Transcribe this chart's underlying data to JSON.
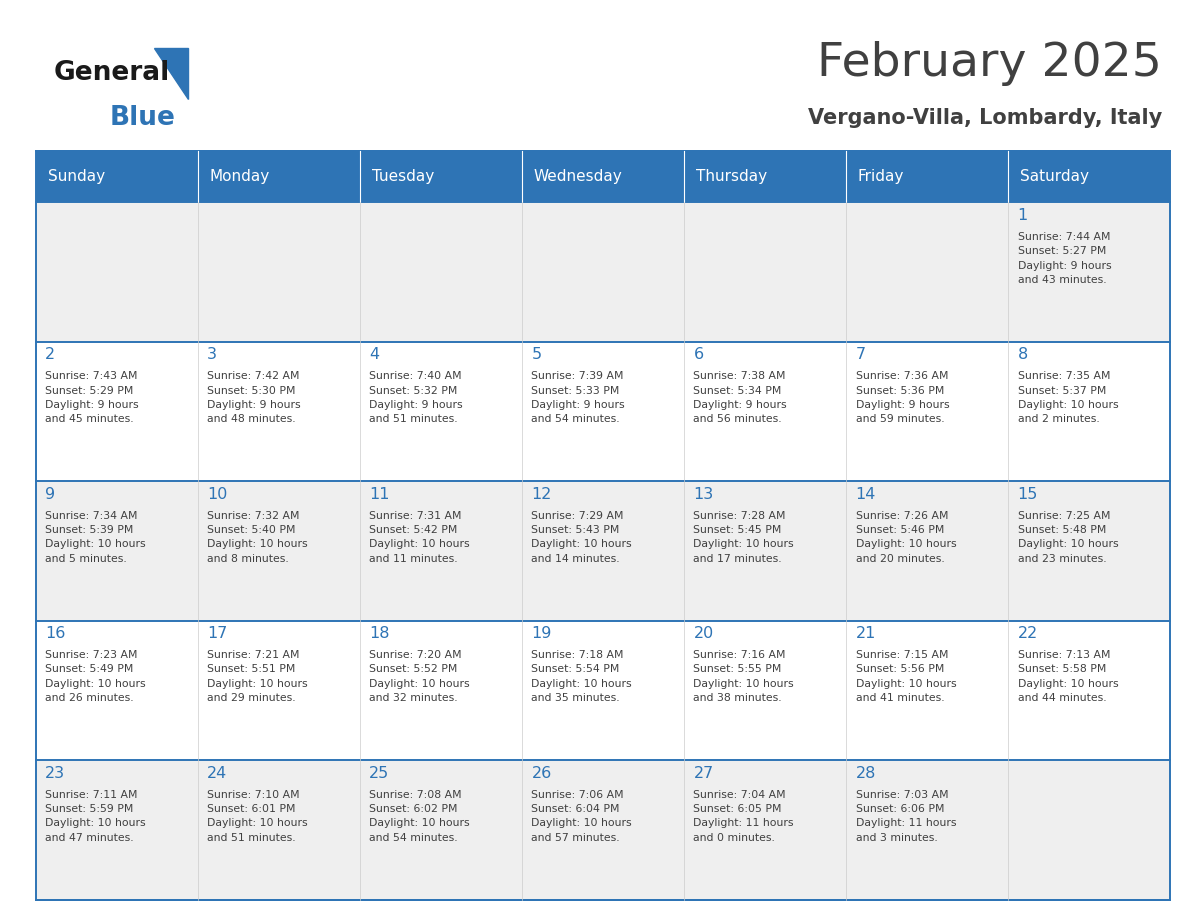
{
  "title": "February 2025",
  "subtitle": "Vergano-Villa, Lombardy, Italy",
  "header_color": "#2E74B5",
  "header_text_color": "#FFFFFF",
  "day_names": [
    "Sunday",
    "Monday",
    "Tuesday",
    "Wednesday",
    "Thursday",
    "Friday",
    "Saturday"
  ],
  "alt_row_color": "#EFEFEF",
  "white_color": "#FFFFFF",
  "border_color": "#2E74B5",
  "text_color": "#404040",
  "number_color": "#2E74B5",
  "logo_general_color": "#1a1a1a",
  "logo_blue_color": "#2E74B5",
  "logo_triangle_color": "#2E74B5",
  "calendar": [
    [
      {
        "day": null,
        "info": null
      },
      {
        "day": null,
        "info": null
      },
      {
        "day": null,
        "info": null
      },
      {
        "day": null,
        "info": null
      },
      {
        "day": null,
        "info": null
      },
      {
        "day": null,
        "info": null
      },
      {
        "day": 1,
        "info": "Sunrise: 7:44 AM\nSunset: 5:27 PM\nDaylight: 9 hours\nand 43 minutes."
      }
    ],
    [
      {
        "day": 2,
        "info": "Sunrise: 7:43 AM\nSunset: 5:29 PM\nDaylight: 9 hours\nand 45 minutes."
      },
      {
        "day": 3,
        "info": "Sunrise: 7:42 AM\nSunset: 5:30 PM\nDaylight: 9 hours\nand 48 minutes."
      },
      {
        "day": 4,
        "info": "Sunrise: 7:40 AM\nSunset: 5:32 PM\nDaylight: 9 hours\nand 51 minutes."
      },
      {
        "day": 5,
        "info": "Sunrise: 7:39 AM\nSunset: 5:33 PM\nDaylight: 9 hours\nand 54 minutes."
      },
      {
        "day": 6,
        "info": "Sunrise: 7:38 AM\nSunset: 5:34 PM\nDaylight: 9 hours\nand 56 minutes."
      },
      {
        "day": 7,
        "info": "Sunrise: 7:36 AM\nSunset: 5:36 PM\nDaylight: 9 hours\nand 59 minutes."
      },
      {
        "day": 8,
        "info": "Sunrise: 7:35 AM\nSunset: 5:37 PM\nDaylight: 10 hours\nand 2 minutes."
      }
    ],
    [
      {
        "day": 9,
        "info": "Sunrise: 7:34 AM\nSunset: 5:39 PM\nDaylight: 10 hours\nand 5 minutes."
      },
      {
        "day": 10,
        "info": "Sunrise: 7:32 AM\nSunset: 5:40 PM\nDaylight: 10 hours\nand 8 minutes."
      },
      {
        "day": 11,
        "info": "Sunrise: 7:31 AM\nSunset: 5:42 PM\nDaylight: 10 hours\nand 11 minutes."
      },
      {
        "day": 12,
        "info": "Sunrise: 7:29 AM\nSunset: 5:43 PM\nDaylight: 10 hours\nand 14 minutes."
      },
      {
        "day": 13,
        "info": "Sunrise: 7:28 AM\nSunset: 5:45 PM\nDaylight: 10 hours\nand 17 minutes."
      },
      {
        "day": 14,
        "info": "Sunrise: 7:26 AM\nSunset: 5:46 PM\nDaylight: 10 hours\nand 20 minutes."
      },
      {
        "day": 15,
        "info": "Sunrise: 7:25 AM\nSunset: 5:48 PM\nDaylight: 10 hours\nand 23 minutes."
      }
    ],
    [
      {
        "day": 16,
        "info": "Sunrise: 7:23 AM\nSunset: 5:49 PM\nDaylight: 10 hours\nand 26 minutes."
      },
      {
        "day": 17,
        "info": "Sunrise: 7:21 AM\nSunset: 5:51 PM\nDaylight: 10 hours\nand 29 minutes."
      },
      {
        "day": 18,
        "info": "Sunrise: 7:20 AM\nSunset: 5:52 PM\nDaylight: 10 hours\nand 32 minutes."
      },
      {
        "day": 19,
        "info": "Sunrise: 7:18 AM\nSunset: 5:54 PM\nDaylight: 10 hours\nand 35 minutes."
      },
      {
        "day": 20,
        "info": "Sunrise: 7:16 AM\nSunset: 5:55 PM\nDaylight: 10 hours\nand 38 minutes."
      },
      {
        "day": 21,
        "info": "Sunrise: 7:15 AM\nSunset: 5:56 PM\nDaylight: 10 hours\nand 41 minutes."
      },
      {
        "day": 22,
        "info": "Sunrise: 7:13 AM\nSunset: 5:58 PM\nDaylight: 10 hours\nand 44 minutes."
      }
    ],
    [
      {
        "day": 23,
        "info": "Sunrise: 7:11 AM\nSunset: 5:59 PM\nDaylight: 10 hours\nand 47 minutes."
      },
      {
        "day": 24,
        "info": "Sunrise: 7:10 AM\nSunset: 6:01 PM\nDaylight: 10 hours\nand 51 minutes."
      },
      {
        "day": 25,
        "info": "Sunrise: 7:08 AM\nSunset: 6:02 PM\nDaylight: 10 hours\nand 54 minutes."
      },
      {
        "day": 26,
        "info": "Sunrise: 7:06 AM\nSunset: 6:04 PM\nDaylight: 10 hours\nand 57 minutes."
      },
      {
        "day": 27,
        "info": "Sunrise: 7:04 AM\nSunset: 6:05 PM\nDaylight: 11 hours\nand 0 minutes."
      },
      {
        "day": 28,
        "info": "Sunrise: 7:03 AM\nSunset: 6:06 PM\nDaylight: 11 hours\nand 3 minutes."
      },
      {
        "day": null,
        "info": null
      }
    ]
  ],
  "fig_width": 11.88,
  "fig_height": 9.18,
  "dpi": 100
}
